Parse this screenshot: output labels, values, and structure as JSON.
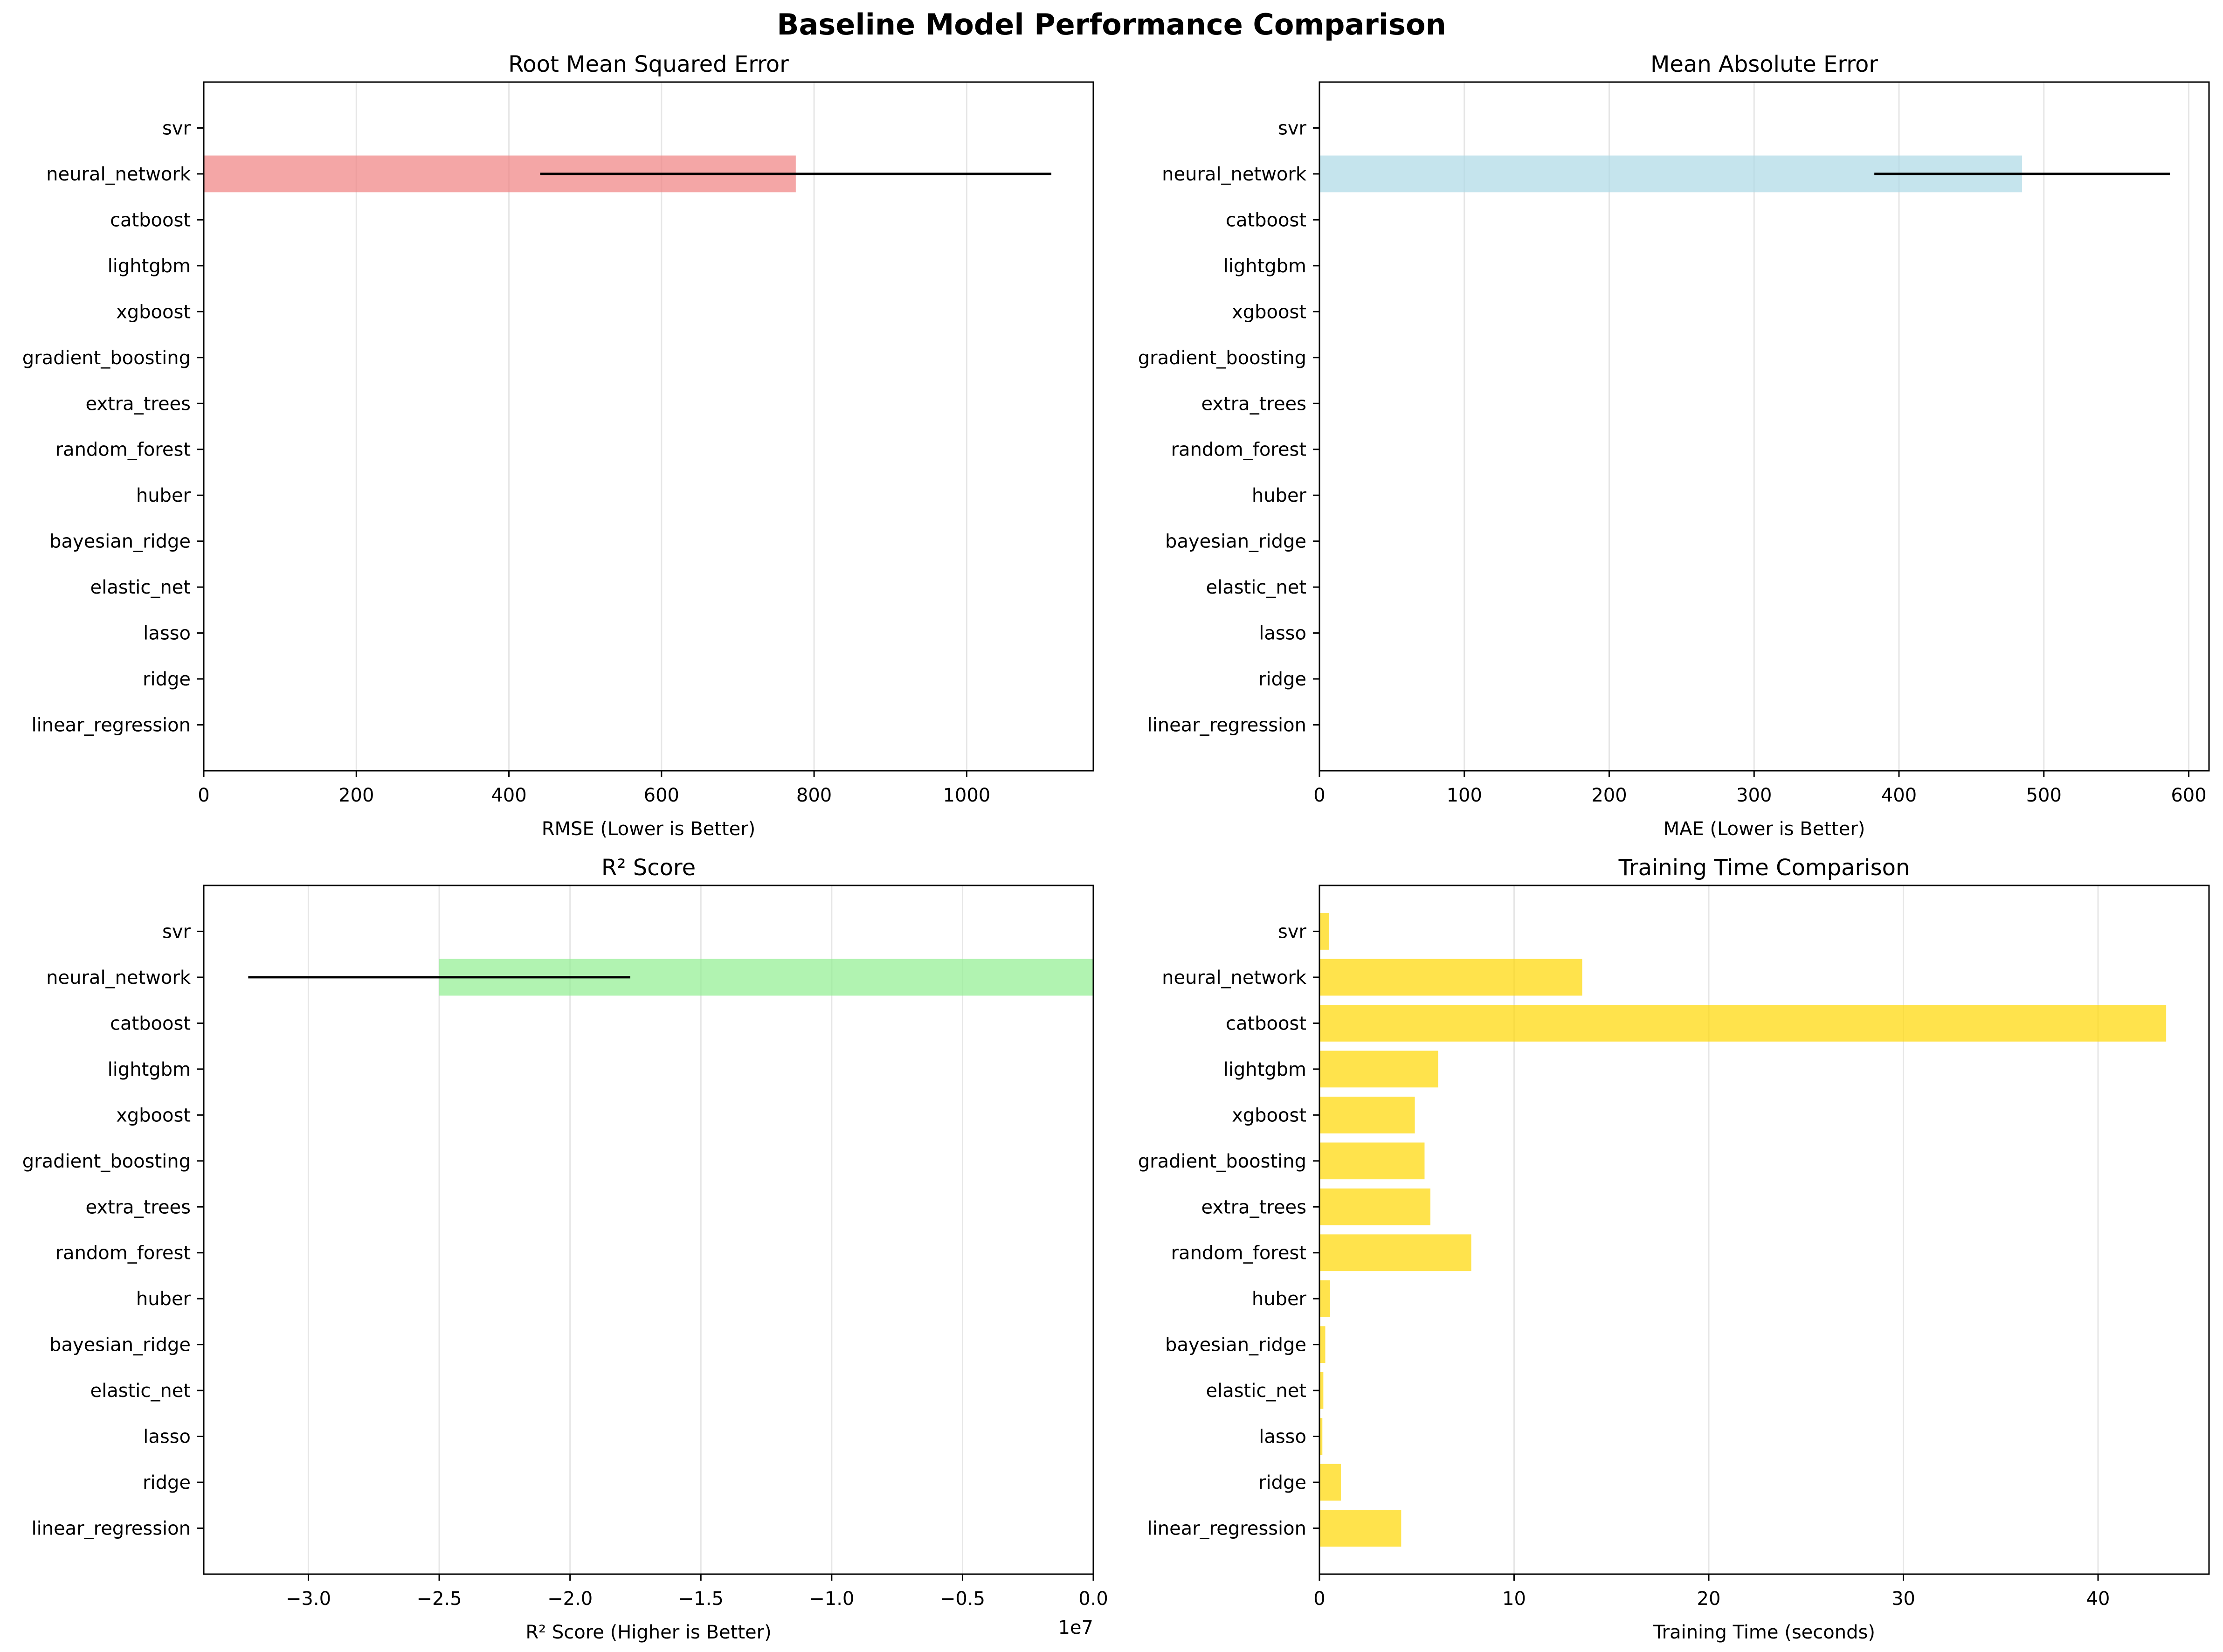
{
  "figure_title": "Baseline Model Performance Comparison",
  "colors": {
    "rmse_bar": "#f08080",
    "mae_bar": "#add8e6",
    "r2_bar": "#90ee90",
    "time_bar": "#ffd700",
    "error_bar": "#000000",
    "grid": "#e6e6e6"
  },
  "chart_data": [
    {
      "type": "bar",
      "orientation": "horizontal",
      "title": "Root Mean Squared Error",
      "xlabel": "RMSE (Lower is Better)",
      "xlim": [
        0,
        1166
      ],
      "xticks": [
        0,
        200,
        400,
        600,
        800,
        1000
      ],
      "xtick_labels": [
        "0",
        "200",
        "400",
        "600",
        "800",
        "1000"
      ],
      "offset_text": "",
      "grid": "x",
      "color_key": "rmse_bar",
      "categories": [
        "linear_regression",
        "ridge",
        "lasso",
        "elastic_net",
        "bayesian_ridge",
        "huber",
        "random_forest",
        "extra_trees",
        "gradient_boosting",
        "xgboost",
        "lightgbm",
        "catboost",
        "neural_network",
        "svr"
      ],
      "values": [
        0,
        0,
        0,
        0,
        0,
        0,
        0,
        0,
        0,
        0,
        0,
        0,
        776,
        0
      ],
      "errors": [
        0,
        0,
        0,
        0,
        0,
        0,
        0,
        0,
        0,
        0,
        0,
        0,
        335,
        0
      ]
    },
    {
      "type": "bar",
      "orientation": "horizontal",
      "title": "Mean Absolute Error",
      "xlabel": "MAE (Lower is Better)",
      "xlim": [
        0,
        614
      ],
      "xticks": [
        0,
        100,
        200,
        300,
        400,
        500,
        600
      ],
      "xtick_labels": [
        "0",
        "100",
        "200",
        "300",
        "400",
        "500",
        "600"
      ],
      "offset_text": "",
      "grid": "x",
      "color_key": "mae_bar",
      "categories": [
        "linear_regression",
        "ridge",
        "lasso",
        "elastic_net",
        "bayesian_ridge",
        "huber",
        "random_forest",
        "extra_trees",
        "gradient_boosting",
        "xgboost",
        "lightgbm",
        "catboost",
        "neural_network",
        "svr"
      ],
      "values": [
        0,
        0,
        0,
        0,
        0,
        0,
        0,
        0,
        0,
        0,
        0,
        0,
        485,
        0
      ],
      "errors": [
        0,
        0,
        0,
        0,
        0,
        0,
        0,
        0,
        0,
        0,
        0,
        0,
        102,
        0
      ]
    },
    {
      "type": "bar",
      "orientation": "horizontal",
      "title": "R² Score",
      "xlabel": "R² Score (Higher is Better)",
      "xlim": [
        -34000000,
        0
      ],
      "xticks": [
        -30000000,
        -25000000,
        -20000000,
        -15000000,
        -10000000,
        -5000000,
        0
      ],
      "xtick_labels": [
        "−3.0",
        "−2.5",
        "−2.0",
        "−1.5",
        "−1.0",
        "−0.5",
        "0.0"
      ],
      "offset_text": "1e7",
      "grid": "x",
      "color_key": "r2_bar",
      "categories": [
        "linear_regression",
        "ridge",
        "lasso",
        "elastic_net",
        "bayesian_ridge",
        "huber",
        "random_forest",
        "extra_trees",
        "gradient_boosting",
        "xgboost",
        "lightgbm",
        "catboost",
        "neural_network",
        "svr"
      ],
      "values": [
        0,
        0,
        0,
        0,
        0,
        0,
        0,
        0,
        0,
        0,
        0,
        0,
        -25000000,
        0
      ],
      "errors": [
        0,
        0,
        0,
        0,
        0,
        0,
        0,
        0,
        0,
        0,
        0,
        0,
        7300000,
        0
      ]
    },
    {
      "type": "bar",
      "orientation": "horizontal",
      "title": "Training Time Comparison",
      "xlabel": "Training Time (seconds)",
      "xlim": [
        0,
        45.7
      ],
      "xticks": [
        0,
        10,
        20,
        30,
        40
      ],
      "xtick_labels": [
        "0",
        "10",
        "20",
        "30",
        "40"
      ],
      "offset_text": "",
      "grid": "x",
      "color_key": "time_bar",
      "categories": [
        "linear_regression",
        "ridge",
        "lasso",
        "elastic_net",
        "bayesian_ridge",
        "huber",
        "random_forest",
        "extra_trees",
        "gradient_boosting",
        "xgboost",
        "lightgbm",
        "catboost",
        "neural_network",
        "svr"
      ],
      "values": [
        4.2,
        1.1,
        0.15,
        0.2,
        0.3,
        0.55,
        7.8,
        5.7,
        5.4,
        4.9,
        6.1,
        43.5,
        13.5,
        0.5
      ],
      "errors": [
        0,
        0,
        0,
        0,
        0,
        0,
        0,
        0,
        0,
        0,
        0,
        0,
        0,
        0
      ]
    }
  ]
}
